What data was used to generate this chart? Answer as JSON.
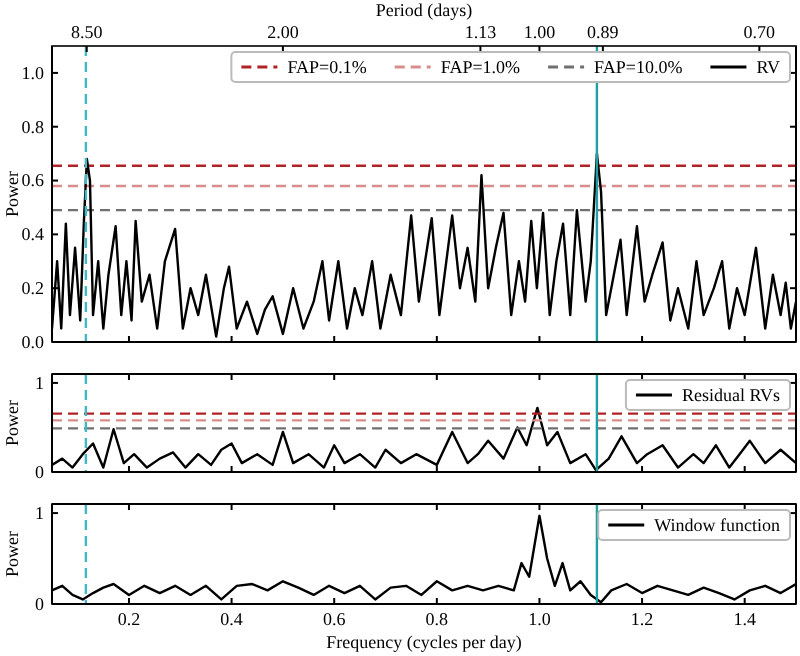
{
  "chart_data": [
    {
      "type": "line",
      "ylabel": "Power",
      "x2label": "Period (days)",
      "xlim": [
        0.05,
        1.5
      ],
      "ylim": [
        0,
        1.1
      ],
      "xticks": [
        0.2,
        0.4,
        0.6,
        0.8,
        1,
        1.2,
        1.4
      ],
      "yticks": [
        {
          "value": 0,
          "label": "0.0"
        },
        0.2,
        0.4,
        0.6,
        0.8,
        {
          "value": 1,
          "label": "1.0"
        }
      ],
      "annotations": [
        "8.50",
        "2.00",
        "1.13",
        "1.00",
        "0.89",
        "0.70"
      ],
      "tick_labels": "y",
      "legend": "top right",
      "ref_lines": [
        {
          "axis": "x",
          "value": 0.116,
          "color": "#40b8c8",
          "line_style": "dashed"
        },
        {
          "axis": "x",
          "value": 1.112,
          "color": "#20a0a0",
          "line_style": "solid"
        }
      ],
      "series": [
        {
          "name": "FAP=0.1%",
          "color": "#b22222",
          "line_style": "dashed",
          "x": [
            0.05,
            1.5
          ],
          "values": [
            0.655,
            0.655
          ]
        },
        {
          "name": "FAP=1.0%",
          "color": "#d98c8c",
          "line_style": "dashed",
          "x": [
            0.05,
            1.5
          ],
          "values": [
            0.58,
            0.58
          ]
        },
        {
          "name": "FAP=10.0%",
          "color": "#707070",
          "line_style": "dashed",
          "x": [
            0.05,
            1.5
          ],
          "values": [
            0.49,
            0.49
          ]
        },
        {
          "name": "RV",
          "color": "#000000",
          "x": [
            0.05,
            0.06,
            0.068,
            0.077,
            0.085,
            0.095,
            0.105,
            0.112,
            0.118,
            0.124,
            0.13,
            0.14,
            0.15,
            0.16,
            0.174,
            0.185,
            0.195,
            0.205,
            0.213,
            0.225,
            0.24,
            0.255,
            0.27,
            0.29,
            0.305,
            0.32,
            0.335,
            0.35,
            0.37,
            0.385,
            0.395,
            0.41,
            0.43,
            0.45,
            0.465,
            0.48,
            0.5,
            0.52,
            0.54,
            0.56,
            0.577,
            0.59,
            0.608,
            0.625,
            0.64,
            0.655,
            0.674,
            0.69,
            0.71,
            0.73,
            0.75,
            0.765,
            0.79,
            0.805,
            0.83,
            0.845,
            0.86,
            0.875,
            0.887,
            0.9,
            0.915,
            0.93,
            0.945,
            0.96,
            0.972,
            0.984,
            0.995,
            1.007,
            1.02,
            1.033,
            1.046,
            1.06,
            1.073,
            1.09,
            1.1,
            1.112,
            1.12,
            1.13,
            1.145,
            1.158,
            1.17,
            1.19,
            1.205,
            1.22,
            1.24,
            1.255,
            1.27,
            1.29,
            1.306,
            1.32,
            1.34,
            1.356,
            1.37,
            1.385,
            1.4,
            1.422,
            1.44,
            1.455,
            1.47,
            1.48,
            1.49,
            1.5
          ],
          "values": [
            0.05,
            0.3,
            0.05,
            0.44,
            0.1,
            0.35,
            0.08,
            0.44,
            0.68,
            0.6,
            0.1,
            0.3,
            0.05,
            0.25,
            0.43,
            0.1,
            0.3,
            0.08,
            0.45,
            0.15,
            0.25,
            0.05,
            0.3,
            0.42,
            0.05,
            0.2,
            0.1,
            0.25,
            0.02,
            0.2,
            0.28,
            0.05,
            0.15,
            0.03,
            0.12,
            0.17,
            0.03,
            0.2,
            0.05,
            0.15,
            0.3,
            0.08,
            0.3,
            0.05,
            0.2,
            0.1,
            0.3,
            0.05,
            0.25,
            0.1,
            0.47,
            0.15,
            0.46,
            0.1,
            0.47,
            0.2,
            0.35,
            0.15,
            0.62,
            0.2,
            0.35,
            0.48,
            0.1,
            0.3,
            0.15,
            0.45,
            0.2,
            0.48,
            0.1,
            0.3,
            0.44,
            0.1,
            0.49,
            0.15,
            0.3,
            0.7,
            0.56,
            0.1,
            0.25,
            0.38,
            0.1,
            0.43,
            0.15,
            0.25,
            0.37,
            0.08,
            0.2,
            0.05,
            0.3,
            0.1,
            0.2,
            0.3,
            0.05,
            0.2,
            0.1,
            0.35,
            0.05,
            0.25,
            0.1,
            0.22,
            0.05,
            0.15
          ]
        }
      ]
    },
    {
      "type": "line",
      "ylabel": "Power",
      "xlim": [
        0.05,
        1.5
      ],
      "ylim": [
        0,
        1.1
      ],
      "xticks": [
        0.2,
        0.4,
        0.6,
        0.8,
        1,
        1.2,
        1.4
      ],
      "yticks": [
        0,
        1
      ],
      "tick_labels": "y",
      "legend": "top right",
      "ref_lines": [
        {
          "axis": "y",
          "value": 0.655,
          "color": "#b22222",
          "line_style": "dashed"
        },
        {
          "axis": "y",
          "value": 0.58,
          "color": "#d98c8c",
          "line_style": "dashed"
        },
        {
          "axis": "y",
          "value": 0.49,
          "color": "#707070",
          "line_style": "dashed"
        },
        {
          "axis": "x",
          "value": 0.116,
          "color": "#40b8c8",
          "line_style": "dashed"
        },
        {
          "axis": "x",
          "value": 1.112,
          "color": "#20a0a0",
          "line_style": "solid"
        }
      ],
      "series": [
        {
          "name": "Residual RVs",
          "color": "#000000",
          "x": [
            0.05,
            0.07,
            0.09,
            0.11,
            0.13,
            0.15,
            0.17,
            0.19,
            0.21,
            0.235,
            0.26,
            0.286,
            0.31,
            0.335,
            0.36,
            0.38,
            0.4,
            0.42,
            0.45,
            0.48,
            0.5,
            0.52,
            0.55,
            0.58,
            0.6,
            0.62,
            0.65,
            0.68,
            0.7,
            0.73,
            0.76,
            0.8,
            0.83,
            0.86,
            0.88,
            0.9,
            0.93,
            0.957,
            0.975,
            0.996,
            1.015,
            1.035,
            1.06,
            1.09,
            1.11,
            1.135,
            1.16,
            1.19,
            1.21,
            1.24,
            1.27,
            1.3,
            1.32,
            1.344,
            1.37,
            1.39,
            1.41,
            1.44,
            1.47,
            1.5
          ],
          "values": [
            0.08,
            0.15,
            0.05,
            0.2,
            0.32,
            0.05,
            0.48,
            0.1,
            0.2,
            0.05,
            0.15,
            0.22,
            0.05,
            0.2,
            0.08,
            0.25,
            0.32,
            0.1,
            0.2,
            0.08,
            0.45,
            0.1,
            0.2,
            0.05,
            0.3,
            0.1,
            0.2,
            0.05,
            0.25,
            0.1,
            0.2,
            0.08,
            0.45,
            0.1,
            0.2,
            0.35,
            0.15,
            0.5,
            0.3,
            0.72,
            0.3,
            0.45,
            0.1,
            0.2,
            0.02,
            0.15,
            0.4,
            0.1,
            0.2,
            0.3,
            0.05,
            0.2,
            0.1,
            0.3,
            0.05,
            0.2,
            0.35,
            0.1,
            0.25,
            0.1
          ]
        }
      ]
    },
    {
      "type": "line",
      "ylabel": "Power",
      "xlabel": "Frequency (cycles per day)",
      "xlim": [
        0.05,
        1.5
      ],
      "ylim": [
        0,
        1.1
      ],
      "xticks": [
        0.2,
        0.4,
        0.6,
        0.8,
        {
          "value": 1,
          "label": "1.0"
        },
        1.2,
        1.4
      ],
      "yticks": [
        0,
        1
      ],
      "legend": "top right",
      "ref_lines": [
        {
          "axis": "x",
          "value": 0.116,
          "color": "#40b8c8",
          "line_style": "dashed"
        },
        {
          "axis": "x",
          "value": 1.112,
          "color": "#20a0a0",
          "line_style": "solid"
        }
      ],
      "series": [
        {
          "name": "Window function",
          "color": "#000000",
          "x": [
            0.05,
            0.07,
            0.09,
            0.11,
            0.13,
            0.15,
            0.17,
            0.2,
            0.23,
            0.26,
            0.29,
            0.32,
            0.35,
            0.38,
            0.41,
            0.44,
            0.47,
            0.5,
            0.53,
            0.56,
            0.59,
            0.62,
            0.65,
            0.68,
            0.71,
            0.74,
            0.77,
            0.8,
            0.83,
            0.86,
            0.89,
            0.92,
            0.95,
            0.965,
            0.98,
            1.0,
            1.015,
            1.03,
            1.045,
            1.06,
            1.08,
            1.1,
            1.12,
            1.14,
            1.17,
            1.2,
            1.23,
            1.26,
            1.29,
            1.32,
            1.35,
            1.38,
            1.41,
            1.44,
            1.47,
            1.5
          ],
          "values": [
            0.15,
            0.2,
            0.1,
            0.05,
            0.12,
            0.18,
            0.22,
            0.1,
            0.2,
            0.12,
            0.2,
            0.1,
            0.2,
            0.05,
            0.2,
            0.22,
            0.15,
            0.25,
            0.18,
            0.1,
            0.2,
            0.12,
            0.2,
            0.05,
            0.18,
            0.2,
            0.1,
            0.25,
            0.15,
            0.2,
            0.15,
            0.2,
            0.15,
            0.45,
            0.3,
            0.97,
            0.5,
            0.2,
            0.45,
            0.15,
            0.25,
            0.1,
            0.02,
            0.15,
            0.22,
            0.12,
            0.2,
            0.15,
            0.1,
            0.18,
            0.12,
            0.05,
            0.15,
            0.2,
            0.12,
            0.22
          ]
        }
      ]
    }
  ]
}
